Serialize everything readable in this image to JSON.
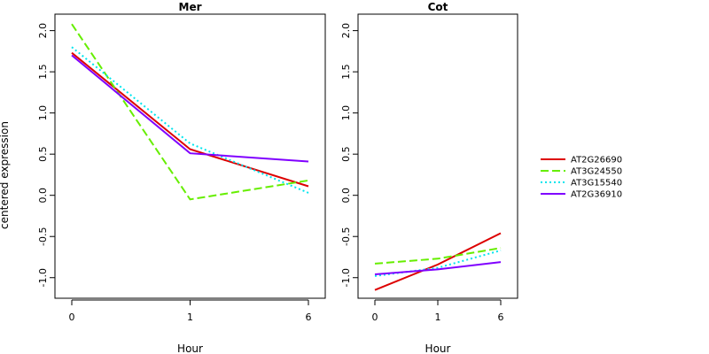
{
  "figure": {
    "ylabel": "centered expression"
  },
  "chart_data": [
    {
      "type": "line",
      "title": "Mer",
      "xlabel": "Hour",
      "ylabel": "centered expression",
      "categories": [
        "0",
        "1",
        "6"
      ],
      "ylim": [
        -1.25,
        2.2
      ],
      "yticks": [
        -1.0,
        -0.5,
        0.0,
        0.5,
        1.0,
        1.5,
        2.0
      ],
      "ytick_labels": [
        "-1.0",
        "-0.5",
        "0.0",
        "0.5",
        "1.0",
        "1.5",
        "2.0"
      ],
      "series": [
        {
          "name": "AT2G26690",
          "values": [
            1.73,
            0.56,
            0.11
          ],
          "color": "#dd0000",
          "dash": "solid"
        },
        {
          "name": "AT3G24550",
          "values": [
            2.08,
            -0.05,
            0.18
          ],
          "color": "#66ee00",
          "dash": "dashed"
        },
        {
          "name": "AT3G15540",
          "values": [
            1.8,
            0.63,
            0.03
          ],
          "color": "#00e5ee",
          "dash": "dotted"
        },
        {
          "name": "AT2G36910",
          "values": [
            1.7,
            0.51,
            0.41
          ],
          "color": "#8000ff",
          "dash": "solid"
        }
      ]
    },
    {
      "type": "line",
      "title": "Cot",
      "xlabel": "Hour",
      "ylabel": "",
      "categories": [
        "0",
        "1",
        "6"
      ],
      "ylim": [
        -1.25,
        2.2
      ],
      "yticks": [
        -1.0,
        -0.5,
        0.0,
        0.5,
        1.0,
        1.5,
        2.0
      ],
      "ytick_labels": [
        "-1.0",
        "-0.5",
        "0.0",
        "0.5",
        "1.0",
        "1.5",
        "2.0"
      ],
      "series": [
        {
          "name": "AT2G26690",
          "values": [
            -1.15,
            -0.84,
            -0.46
          ],
          "color": "#dd0000",
          "dash": "solid"
        },
        {
          "name": "AT3G24550",
          "values": [
            -0.83,
            -0.77,
            -0.64
          ],
          "color": "#66ee00",
          "dash": "dashed"
        },
        {
          "name": "AT3G15540",
          "values": [
            -0.98,
            -0.88,
            -0.67
          ],
          "color": "#00e5ee",
          "dash": "dotted"
        },
        {
          "name": "AT2G36910",
          "values": [
            -0.96,
            -0.9,
            -0.81
          ],
          "color": "#8000ff",
          "dash": "solid"
        }
      ]
    }
  ],
  "legend": {
    "position": "right",
    "entries": [
      {
        "label": "AT2G26690",
        "color": "#dd0000",
        "dash": "solid"
      },
      {
        "label": "AT3G24550",
        "color": "#66ee00",
        "dash": "dashed"
      },
      {
        "label": "AT3G15540",
        "color": "#00e5ee",
        "dash": "dotted"
      },
      {
        "label": "AT2G36910",
        "color": "#8000ff",
        "dash": "solid"
      }
    ]
  }
}
